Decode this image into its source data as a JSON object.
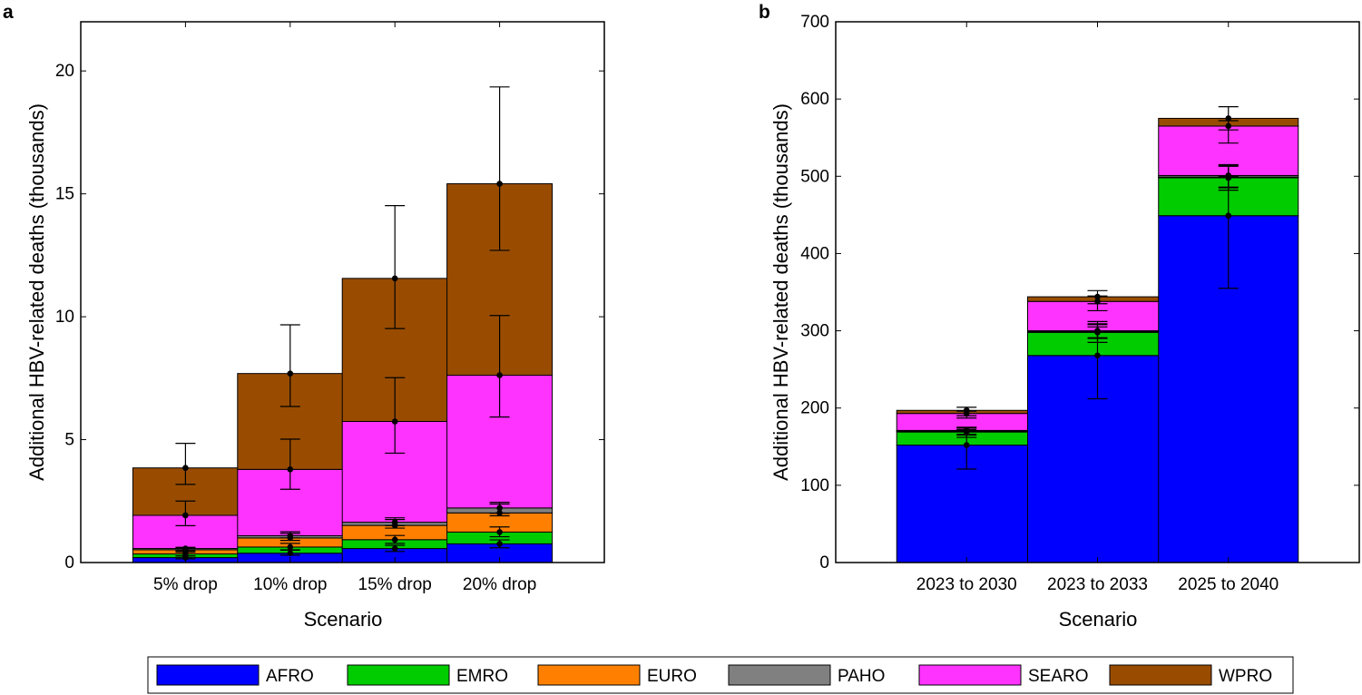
{
  "legend": {
    "placement": "bottom-center",
    "entries": [
      {
        "name": "AFRO",
        "color": "#0000ff"
      },
      {
        "name": "EMRO",
        "color": "#00cc00"
      },
      {
        "name": "EURO",
        "color": "#ff8000"
      },
      {
        "name": "PAHO",
        "color": "#808080"
      },
      {
        "name": "SEARO",
        "color": "#ff33ff"
      },
      {
        "name": "WPRO",
        "color": "#994c00"
      }
    ]
  },
  "chart_data": [
    {
      "panel": "a",
      "type": "bar",
      "stacked": true,
      "xlabel": "Scenario",
      "ylabel": "Additional HBV-related deaths (thousands)",
      "ylim": [
        0,
        22
      ],
      "yticks": [
        0,
        5,
        10,
        15,
        20
      ],
      "grid": false,
      "categories": [
        "5% drop",
        "10% drop",
        "15% drop",
        "20% drop"
      ],
      "series": [
        {
          "name": "AFRO",
          "color": "#0000ff",
          "values": [
            0.2,
            0.38,
            0.57,
            0.76
          ],
          "error_low": [
            0.15,
            0.3,
            0.45,
            0.6
          ],
          "error_high": [
            0.27,
            0.5,
            0.7,
            0.92
          ]
        },
        {
          "name": "EMRO",
          "color": "#00cc00",
          "values": [
            0.15,
            0.25,
            0.36,
            0.48
          ],
          "error_low": [
            0.27,
            0.52,
            0.78,
            1.05
          ],
          "error_high": [
            0.42,
            0.78,
            1.1,
            1.45
          ]
        },
        {
          "name": "EURO",
          "color": "#ff8000",
          "values": [
            0.17,
            0.37,
            0.58,
            0.78
          ],
          "error_low": [
            0.45,
            0.9,
            1.4,
            1.9
          ],
          "error_high": [
            0.6,
            1.25,
            1.82,
            2.45
          ]
        },
        {
          "name": "PAHO",
          "color": "#808080",
          "values": [
            0.05,
            0.09,
            0.13,
            0.2
          ],
          "error_low": [
            0.5,
            1.0,
            1.5,
            2.0
          ],
          "error_high": [
            0.62,
            1.18,
            1.75,
            2.38
          ]
        },
        {
          "name": "SEARO",
          "color": "#ff33ff",
          "values": [
            1.35,
            2.7,
            4.1,
            5.4
          ],
          "error_low": [
            1.5,
            2.98,
            4.45,
            5.92
          ],
          "error_high": [
            2.5,
            5.02,
            7.52,
            10.05
          ]
        },
        {
          "name": "WPRO",
          "color": "#994c00",
          "values": [
            1.93,
            3.9,
            5.82,
            7.79
          ],
          "error_low": [
            3.18,
            6.35,
            9.52,
            12.7
          ],
          "error_high": [
            4.85,
            9.67,
            14.52,
            19.35
          ]
        }
      ]
    },
    {
      "panel": "b",
      "type": "bar",
      "stacked": true,
      "xlabel": "Scenario",
      "ylabel": "Additional HBV-related deaths (thousands)",
      "ylim": [
        0,
        700
      ],
      "yticks": [
        0,
        100,
        200,
        300,
        400,
        500,
        600,
        700
      ],
      "grid": false,
      "categories": [
        "2023 to 2030",
        "2023 to 2033",
        "2025 to 2040"
      ],
      "series": [
        {
          "name": "AFRO",
          "color": "#0000ff",
          "values": [
            152,
            268,
            449
          ],
          "error_low": [
            121,
            212,
            355
          ],
          "error_high": [
            172,
            305,
            500
          ]
        },
        {
          "name": "EMRO",
          "color": "#00cc00",
          "values": [
            17,
            30,
            49
          ],
          "error_low": [
            162,
            285,
            482
          ],
          "error_high": [
            175,
            312,
            514
          ]
        },
        {
          "name": "EURO",
          "color": "#ff8000",
          "values": [
            1,
            1,
            1
          ],
          "error_low": [
            165,
            290,
            485
          ],
          "error_high": [
            174,
            308,
            513
          ]
        },
        {
          "name": "PAHO",
          "color": "#808080",
          "values": [
            1,
            1,
            2
          ],
          "error_low": [
            166,
            291,
            486
          ],
          "error_high": [
            175,
            309,
            515
          ]
        },
        {
          "name": "SEARO",
          "color": "#ff33ff",
          "values": [
            22,
            38,
            64
          ],
          "error_low": [
            187,
            326,
            543
          ],
          "error_high": [
            196,
            345,
            572
          ]
        },
        {
          "name": "WPRO",
          "color": "#994c00",
          "values": [
            4,
            6,
            10
          ],
          "error_low": [
            190,
            335,
            560
          ],
          "error_high": [
            201,
            352,
            590
          ]
        }
      ]
    }
  ]
}
